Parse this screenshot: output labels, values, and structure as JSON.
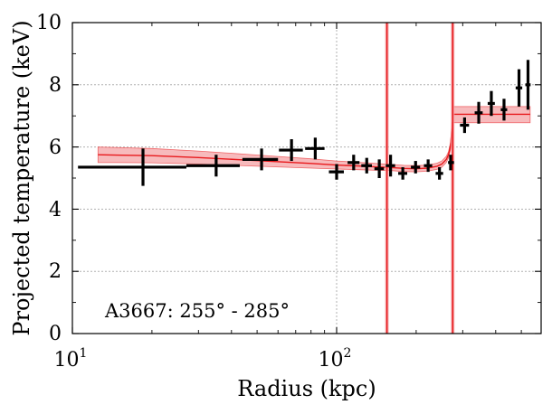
{
  "chart_data": {
    "type": "scatter",
    "xlabel": "Radius (kpc)",
    "ylabel": "Projected temperature (keV)",
    "x_scale": "log",
    "xlim": [
      10,
      580
    ],
    "ylim": [
      0,
      10
    ],
    "y_ticks": [
      "0",
      "2",
      "4",
      "6",
      "8",
      "10"
    ],
    "x_ticks": [
      {
        "value": 10,
        "base": "10",
        "exp": "1"
      },
      {
        "value": 100,
        "base": "10",
        "exp": "2"
      }
    ],
    "grid": true,
    "annotation": "A3667: 255° - 285°",
    "colors": {
      "data": "#000000",
      "model": "#e8191c",
      "band": "#f4a3a6"
    },
    "series": [
      {
        "points": [
          {
            "x": 18.5,
            "xerr": [
              8.0,
              8.5
            ],
            "y": 5.35,
            "yerr": 0.6
          },
          {
            "x": 35.0,
            "xerr": [
              8.0,
              8.0
            ],
            "y": 5.4,
            "yerr": 0.35
          },
          {
            "x": 52.0,
            "xerr": [
              8.0,
              8.0
            ],
            "y": 5.6,
            "yerr": 0.35
          },
          {
            "x": 67.5,
            "xerr": [
              7.0,
              7.0
            ],
            "y": 5.9,
            "yerr": 0.35
          },
          {
            "x": 83.0,
            "xerr": [
              7.0,
              7.0
            ],
            "y": 5.95,
            "yerr": 0.35
          },
          {
            "x": 100.0,
            "xerr": [
              6.5,
              6.5
            ],
            "y": 5.2,
            "yerr": 0.25
          },
          {
            "x": 116.0,
            "xerr": [
              6.0,
              6.0
            ],
            "y": 5.5,
            "yerr": 0.25
          },
          {
            "x": 130.0,
            "xerr": [
              6.0,
              6.0
            ],
            "y": 5.4,
            "yerr": 0.25
          },
          {
            "x": 145.0,
            "xerr": [
              6.0,
              6.0
            ],
            "y": 5.3,
            "yerr": 0.3
          },
          {
            "x": 160.0,
            "xerr": [
              6.5,
              6.5
            ],
            "y": 5.4,
            "yerr": 0.35
          },
          {
            "x": 178.0,
            "xerr": [
              7.0,
              7.0
            ],
            "y": 5.15,
            "yerr": 0.2
          },
          {
            "x": 199.0,
            "xerr": [
              8.0,
              8.0
            ],
            "y": 5.35,
            "yerr": 0.2
          },
          {
            "x": 222.0,
            "xerr": [
              8.0,
              8.0
            ],
            "y": 5.4,
            "yerr": 0.2
          },
          {
            "x": 245.0,
            "xerr": [
              8.0,
              8.0
            ],
            "y": 5.15,
            "yerr": 0.2
          },
          {
            "x": 270.0,
            "xerr": [
              6.0,
              8.0
            ],
            "y": 5.5,
            "yerr": 0.25
          },
          {
            "x": 305.0,
            "xerr": [
              12.0,
              12.0
            ],
            "y": 6.7,
            "yerr": 0.25
          },
          {
            "x": 345.0,
            "xerr": [
              12.0,
              12.0
            ],
            "y": 7.1,
            "yerr": 0.35
          },
          {
            "x": 385.0,
            "xerr": [
              12.0,
              12.0
            ],
            "y": 7.4,
            "yerr": 0.4
          },
          {
            "x": 430.0,
            "xerr": [
              12.0,
              12.0
            ],
            "y": 7.2,
            "yerr": 0.35
          },
          {
            "x": 490.0,
            "xerr": [
              14.0,
              14.0
            ],
            "y": 7.9,
            "yerr": 0.6
          },
          {
            "x": 530.0,
            "xerr": [
              12.0,
              12.0
            ],
            "y": 8.0,
            "yerr": 0.8
          }
        ]
      }
    ],
    "model": {
      "inner": {
        "x": [
          12.5,
          20,
          30,
          50,
          80,
          100,
          120,
          140,
          160,
          180,
          200,
          220,
          240,
          250,
          260,
          265,
          270,
          273
        ],
        "y": [
          5.75,
          5.72,
          5.66,
          5.56,
          5.47,
          5.42,
          5.39,
          5.36,
          5.34,
          5.31,
          5.3,
          5.32,
          5.38,
          5.45,
          5.6,
          5.75,
          6.05,
          6.6
        ],
        "band_halfwidth": [
          0.25,
          0.23,
          0.21,
          0.18,
          0.15,
          0.13,
          0.12,
          0.11,
          0.1,
          0.1,
          0.1,
          0.1,
          0.1,
          0.1,
          0.1,
          0.1,
          0.12,
          0.2
        ]
      },
      "outer": {
        "x": [
          275,
          540
        ],
        "y": 7.05,
        "band": [
          6.78,
          7.3
        ]
      },
      "vertical_lines": [
        155,
        275
      ]
    }
  }
}
